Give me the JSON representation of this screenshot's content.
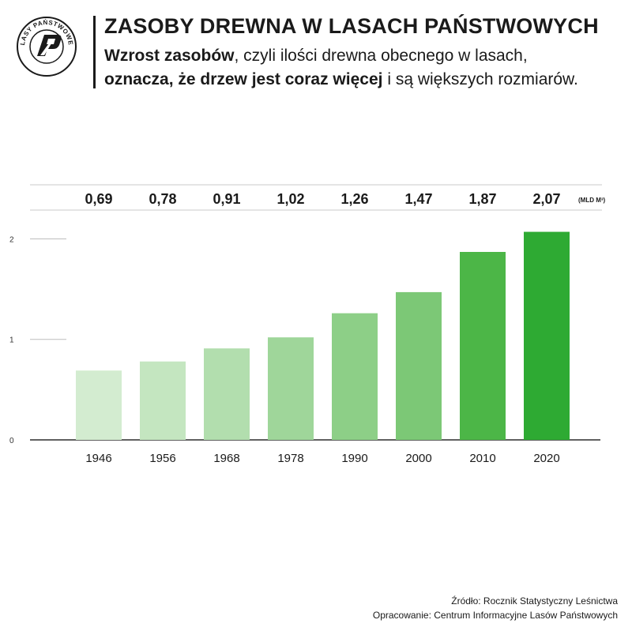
{
  "header": {
    "title": "ZASOBY DREWNA W LASACH PAŃSTWOWYCH",
    "subtitle_line1_bold": "Wzrost zasobów",
    "subtitle_line1_rest": ", czyli ilości drewna obecnego w lasach,",
    "subtitle_line2_bold": "oznacza, że drzew jest coraz więcej",
    "subtitle_line2_rest": " i są większych rozmiarów."
  },
  "logo": {
    "text": "LASY PAŃSTWOWE",
    "icon": "lasy-panstwowe-emblem"
  },
  "chart_data": {
    "type": "bar",
    "categories": [
      "1946",
      "1956",
      "1968",
      "1978",
      "1990",
      "2000",
      "2010",
      "2020"
    ],
    "values": [
      0.69,
      0.78,
      0.91,
      1.02,
      1.26,
      1.47,
      1.87,
      2.07
    ],
    "value_labels": [
      "0,69",
      "0,78",
      "0,91",
      "1,02",
      "1,26",
      "1,47",
      "1,87",
      "2,07"
    ],
    "unit_label": "(MLD M³)",
    "yticks": [
      "0",
      "1",
      "2"
    ],
    "ylim": [
      0,
      2.2
    ],
    "grid": false,
    "bar_colors": [
      "#d3ecd0",
      "#c4e6c0",
      "#b2deae",
      "#9fd69a",
      "#8dcf87",
      "#7cc876",
      "#4cb647",
      "#2eaa33"
    ]
  },
  "footer": {
    "source": "Źródło: Rocznik Statystyczny Leśnictwa",
    "credit": "Opracowanie: Centrum Informacyjne Lasów Państwowych"
  }
}
